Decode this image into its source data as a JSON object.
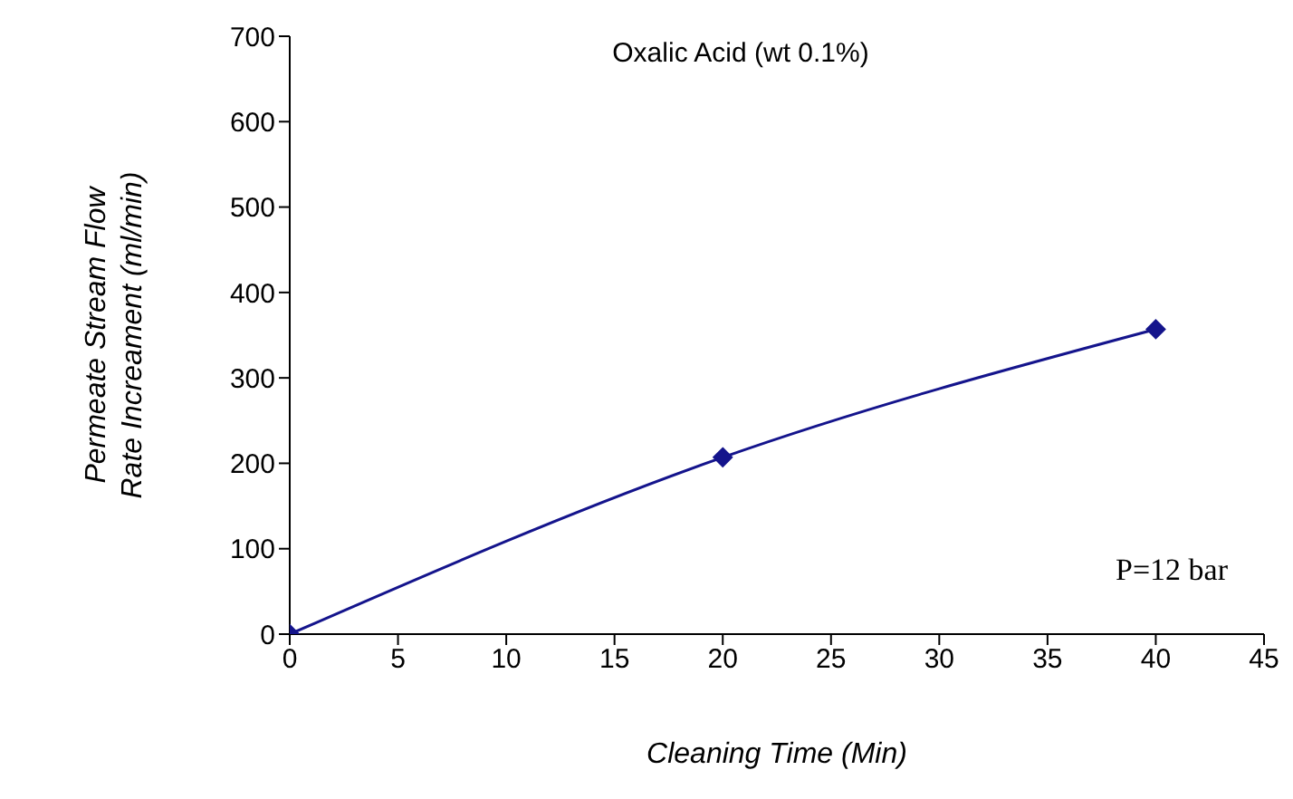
{
  "chart_data": {
    "type": "line",
    "title": "Oxalic Acid  (wt 0.1%)",
    "xlabel": "Cleaning Time (Min)",
    "ylabel": "Permeate Stream Flow\nRate Increament (ml/min)",
    "annotations": [
      "P=12 bar"
    ],
    "x": [
      0,
      20,
      40
    ],
    "series": [
      {
        "color": "#14148c",
        "values": [
          0,
          207,
          357
        ]
      }
    ],
    "xlim": [
      0,
      45
    ],
    "xticks": [
      0,
      5,
      10,
      15,
      20,
      25,
      30,
      35,
      40,
      45
    ],
    "ylim": [
      0,
      700
    ],
    "yticks": [
      0,
      100,
      200,
      300,
      400,
      500,
      600,
      700
    ],
    "grid": false,
    "legend": false,
    "marker": "diamond",
    "line_style": "solid"
  }
}
